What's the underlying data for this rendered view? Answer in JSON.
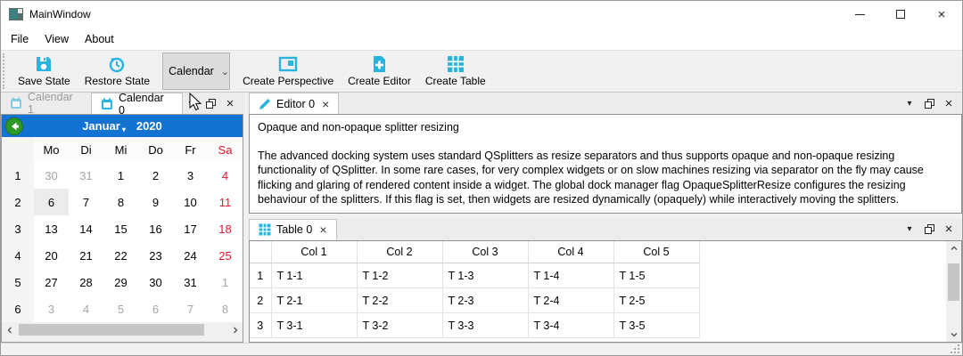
{
  "window": {
    "title": "MainWindow"
  },
  "menu": {
    "items": [
      {
        "label": "File"
      },
      {
        "label": "View"
      },
      {
        "label": "About"
      }
    ]
  },
  "toolbar": {
    "save_label": "Save State",
    "restore_label": "Restore State",
    "perspective_combo_value": "Calendar",
    "create_perspective_label": "Create Perspective",
    "create_editor_label": "Create Editor",
    "create_table_label": "Create Table"
  },
  "colors": {
    "accent_cyan": "#29b4e0",
    "calendar_header_blue": "#1373d3",
    "weekend_red": "#e8112d",
    "back_button_green": "#2d9a27"
  },
  "calendar_dock": {
    "tabs": [
      {
        "label": "Calendar 1",
        "active": false
      },
      {
        "label": "Calendar 0",
        "active": true
      }
    ],
    "nav": {
      "month": "Januar",
      "year": "2020",
      "month_dropdown_caret": "▾"
    },
    "day_headers": [
      "Mo",
      "Di",
      "Mi",
      "Do",
      "Fr",
      "Sa"
    ],
    "weeks": [
      {
        "week": "1",
        "days": [
          {
            "d": "30",
            "cls": "out"
          },
          {
            "d": "31",
            "cls": "out"
          },
          {
            "d": "1",
            "cls": ""
          },
          {
            "d": "2",
            "cls": ""
          },
          {
            "d": "3",
            "cls": ""
          },
          {
            "d": "4",
            "cls": "wk"
          }
        ]
      },
      {
        "week": "2",
        "days": [
          {
            "d": "6",
            "cls": "sel"
          },
          {
            "d": "7",
            "cls": ""
          },
          {
            "d": "8",
            "cls": ""
          },
          {
            "d": "9",
            "cls": ""
          },
          {
            "d": "10",
            "cls": ""
          },
          {
            "d": "11",
            "cls": "wk"
          }
        ]
      },
      {
        "week": "3",
        "days": [
          {
            "d": "13",
            "cls": ""
          },
          {
            "d": "14",
            "cls": ""
          },
          {
            "d": "15",
            "cls": ""
          },
          {
            "d": "16",
            "cls": ""
          },
          {
            "d": "17",
            "cls": ""
          },
          {
            "d": "18",
            "cls": "wk"
          }
        ]
      },
      {
        "week": "4",
        "days": [
          {
            "d": "20",
            "cls": ""
          },
          {
            "d": "21",
            "cls": ""
          },
          {
            "d": "22",
            "cls": ""
          },
          {
            "d": "23",
            "cls": ""
          },
          {
            "d": "24",
            "cls": ""
          },
          {
            "d": "25",
            "cls": "wk"
          }
        ]
      },
      {
        "week": "5",
        "days": [
          {
            "d": "27",
            "cls": ""
          },
          {
            "d": "28",
            "cls": ""
          },
          {
            "d": "29",
            "cls": ""
          },
          {
            "d": "30",
            "cls": ""
          },
          {
            "d": "31",
            "cls": ""
          },
          {
            "d": "1",
            "cls": "out"
          }
        ]
      },
      {
        "week": "6",
        "days": [
          {
            "d": "3",
            "cls": "out"
          },
          {
            "d": "4",
            "cls": "out"
          },
          {
            "d": "5",
            "cls": "out"
          },
          {
            "d": "6",
            "cls": "out"
          },
          {
            "d": "7",
            "cls": "out"
          },
          {
            "d": "8",
            "cls": "out"
          }
        ]
      }
    ]
  },
  "editor_dock": {
    "tab_label": "Editor 0",
    "tab_close": "×",
    "heading": "Opaque and non-opaque splitter resizing",
    "body": "The advanced docking system uses standard QSplitters as resize separators and thus supports opaque and non-opaque resizing functionality of QSplitter. In some rare cases, for very complex widgets or on slow machines resizing via separator on the fly may cause flicking and glaring of rendered content inside a widget. The global dock manager flag OpaqueSplitterResize configures the resizing behaviour of the splitters. If this flag is set, then widgets are resized dynamically (opaquely) while interactively moving the splitters."
  },
  "table_dock": {
    "tab_label": "Table 0",
    "tab_close": "×",
    "columns": [
      "Col 1",
      "Col 2",
      "Col 3",
      "Col 4",
      "Col 5"
    ],
    "rows": [
      {
        "num": "1",
        "cells": [
          "T 1-1",
          "T 1-2",
          "T 1-3",
          "T 1-4",
          "T 1-5"
        ]
      },
      {
        "num": "2",
        "cells": [
          "T 2-1",
          "T 2-2",
          "T 2-3",
          "T 2-4",
          "T 2-5"
        ]
      },
      {
        "num": "3",
        "cells": [
          "T 3-1",
          "T 3-2",
          "T 3-3",
          "T 3-4",
          "T 3-5"
        ]
      }
    ]
  },
  "panel_buttons": {
    "menu_arrow": "▼"
  }
}
